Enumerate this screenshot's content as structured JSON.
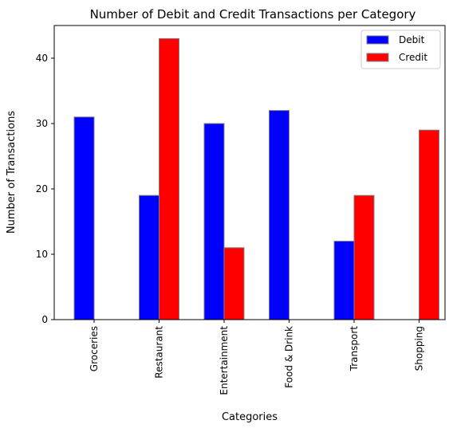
{
  "chart_data": {
    "type": "bar",
    "title": "Number of Debit and Credit Transactions per Category",
    "xlabel": "Categories",
    "ylabel": "Number of Transactions",
    "categories": [
      "Groceries",
      "Restaurant",
      "Entertainment",
      "Food & Drink",
      "Transport",
      "Shopping"
    ],
    "series": [
      {
        "name": "Debit",
        "values": [
          31,
          19,
          30,
          32,
          12,
          0
        ],
        "color": "#0000ff"
      },
      {
        "name": "Credit",
        "values": [
          0,
          43,
          11,
          0,
          19,
          29
        ],
        "color": "#ff0000"
      }
    ],
    "ylim": [
      0,
      45
    ],
    "yticks": [
      0,
      10,
      20,
      30,
      40
    ],
    "legend_position": "top-right",
    "grid": false,
    "bar_edge_color": "#808080"
  }
}
